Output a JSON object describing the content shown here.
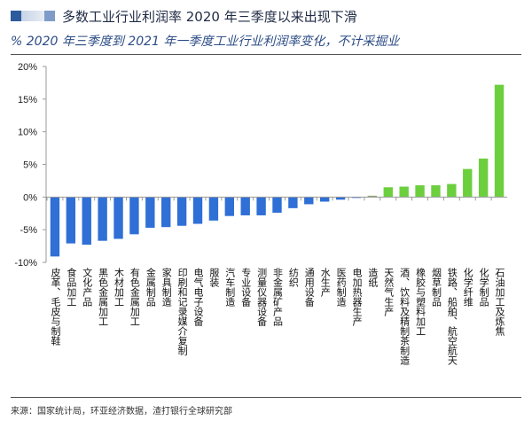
{
  "header": {
    "title": "多数工业行业利润率 2020 年三季度以来出现下滑",
    "subtitle": "% 2020 年三季度到 2021 年一季度工业行业利润率变化，不计采掘业"
  },
  "footer": {
    "source": "来源：国家统计局，环亚经济数据，渣打银行全球研究部"
  },
  "colors": {
    "negative": "#2f6fd6",
    "positive": "#6ccf3e",
    "axis": "#9a9a9a"
  },
  "chart_data": {
    "type": "bar",
    "title": "多数工业行业利润率 2020 年三季度以来出现下滑",
    "subtitle": "% 2020 年三季度到 2021 年一季度工业行业利润率变化，不计采掘业",
    "xlabel": "",
    "ylabel": "%",
    "ylim": [
      -10,
      20
    ],
    "yticks": [
      -10,
      -5,
      0,
      5,
      10,
      15,
      20
    ],
    "ytick_labels": [
      "-10%",
      "-5%",
      "0%",
      "5%",
      "10%",
      "15%",
      "20%"
    ],
    "grid": false,
    "legend": "none",
    "categories": [
      "皮革、毛皮与制鞋",
      "食品加工",
      "文化产品",
      "黑色金属加工",
      "木材加工",
      "有色金属加工",
      "金属制品",
      "家具制造",
      "印刷和记录媒介复制",
      "电气电子设备",
      "服装",
      "汽车制造",
      "专业设备",
      "测量仪器设备",
      "非金属矿产品",
      "纺织",
      "通用设备",
      "水生产",
      "医药制造",
      "电加热器生产",
      "造纸",
      "天然气生产",
      "酒、饮料及精制茶制造",
      "橡胶与塑料加工",
      "烟草制品",
      "铁路、船舶、航空航天",
      "化学纤维",
      "化学制品",
      "石油加工及炼焦"
    ],
    "values": [
      -9.1,
      -7.1,
      -7.3,
      -6.7,
      -6.4,
      -5.7,
      -4.7,
      -4.6,
      -4.4,
      -4.1,
      -3.6,
      -2.9,
      -2.8,
      -2.8,
      -2.4,
      -1.7,
      -1.1,
      -0.7,
      -0.4,
      -0.05,
      0.2,
      1.5,
      1.6,
      1.8,
      1.8,
      2.0,
      4.3,
      5.9,
      17.2
    ]
  }
}
